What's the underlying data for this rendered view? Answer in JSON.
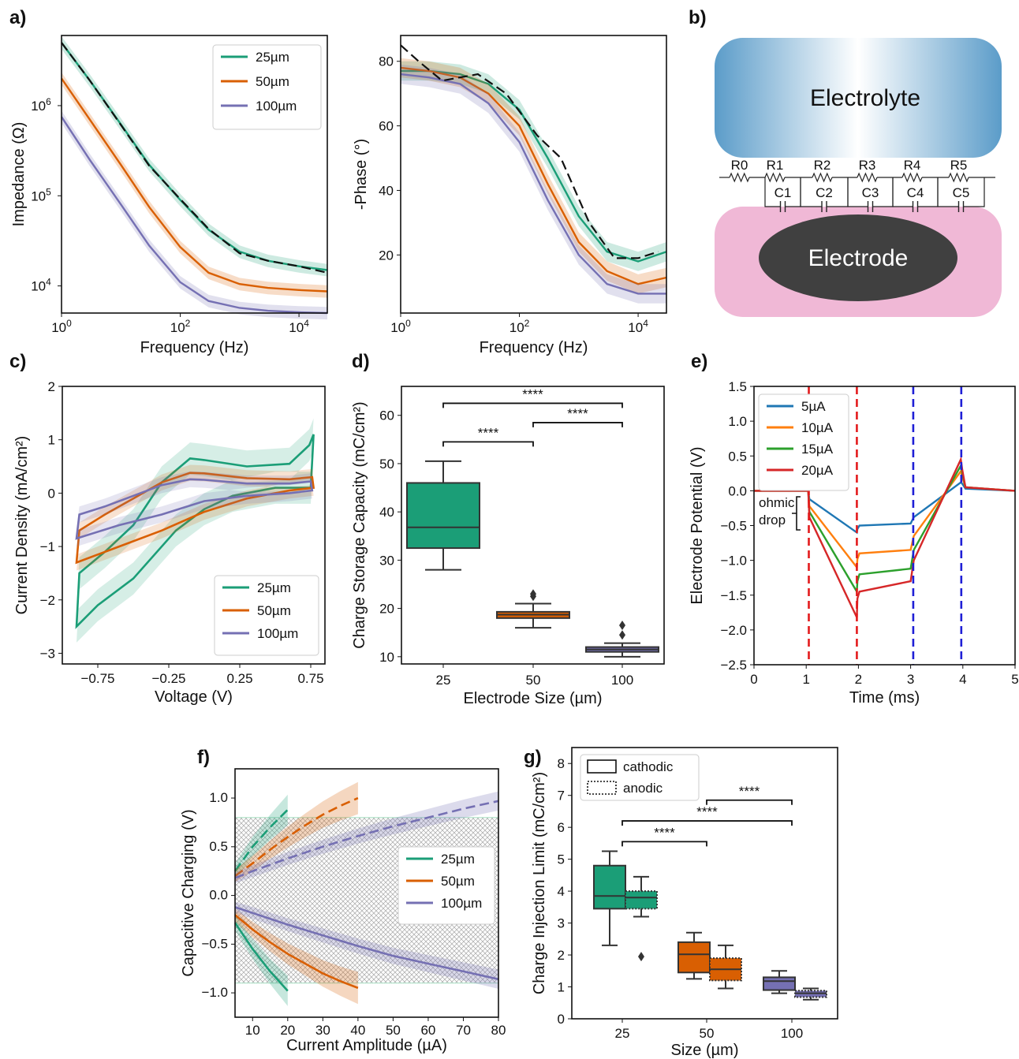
{
  "panel_labels": {
    "a": "a)",
    "b": "b)",
    "c": "c)",
    "d": "d)",
    "e": "e)",
    "f": "f)",
    "g": "g)"
  },
  "colors": {
    "25um": "#1b9e77",
    "50um": "#d95f02",
    "100um": "#7570b3",
    "fit": "#111111",
    "5uA": "#1f77b4",
    "10uA": "#ff7f0e",
    "15uA": "#2ca02c",
    "20uA": "#d62728",
    "red_dash": "#e31a1c",
    "blue_dash": "#1f1fd6",
    "electrode_bg": "#f0b8d6",
    "electrode": "#404040",
    "electrolyte": "#5b9cc9"
  },
  "diagram": {
    "electrolyte_label": "Electrolyte",
    "electrode_label": "Electrode",
    "resistors": [
      "R0",
      "R1",
      "R2",
      "R3",
      "R4",
      "R5"
    ],
    "capacitors": [
      "C1",
      "C2",
      "C3",
      "C4",
      "C5"
    ]
  },
  "chart_data": [
    {
      "id": "a_impedance",
      "type": "line",
      "xlabel": "Frequency (Hz)",
      "ylabel": "Impedance (Ω)",
      "xscale": "log",
      "yscale": "log",
      "xlim": [
        1,
        30000
      ],
      "ylim": [
        5000,
        6000000
      ],
      "x_ticks": [
        "10^0",
        "10^2",
        "10^4"
      ],
      "y_ticks": [
        "10^4",
        "10^5",
        "10^6"
      ],
      "legend": "top-right",
      "series": [
        {
          "name": "25µm",
          "x": [
            1,
            3,
            10,
            30,
            100,
            300,
            1000,
            3000,
            10000,
            30000
          ],
          "y": [
            5000000,
            1900000,
            620000,
            220000,
            90000,
            42000,
            24000,
            19000,
            16500,
            15000
          ]
        },
        {
          "name": "50µm",
          "x": [
            1,
            3,
            10,
            30,
            100,
            300,
            1000,
            3000,
            10000,
            30000
          ],
          "y": [
            2000000,
            700000,
            220000,
            75000,
            27000,
            14000,
            10500,
            9500,
            9000,
            8700
          ]
        },
        {
          "name": "100µm",
          "x": [
            1,
            3,
            10,
            30,
            100,
            300,
            1000,
            3000,
            10000,
            30000
          ],
          "y": [
            750000,
            250000,
            80000,
            28000,
            11000,
            6800,
            5700,
            5300,
            5100,
            5000
          ]
        },
        {
          "name": "",
          "style": "fit",
          "x": [
            1,
            3,
            10,
            30,
            100,
            300,
            1000,
            3000,
            10000,
            30000
          ],
          "y": [
            5000000,
            1900000,
            610000,
            215000,
            92000,
            43000,
            23000,
            19000,
            16500,
            14000
          ]
        }
      ]
    },
    {
      "id": "a_phase",
      "type": "line",
      "xlabel": "Frequency (Hz)",
      "ylabel": "-Phase (°)",
      "xscale": "log",
      "xlim": [
        1,
        30000
      ],
      "ylim": [
        2,
        88
      ],
      "x_ticks": [
        "10^0",
        "10^2",
        "10^4"
      ],
      "y_ticks": [
        20,
        40,
        60,
        80
      ],
      "series": [
        {
          "name": "25µm",
          "x": [
            1,
            3,
            10,
            30,
            100,
            300,
            1000,
            3000,
            10000,
            30000
          ],
          "y": [
            77,
            77,
            76,
            73,
            65,
            50,
            32,
            21,
            18,
            21
          ]
        },
        {
          "name": "50µm",
          "x": [
            1,
            3,
            10,
            30,
            100,
            300,
            1000,
            3000,
            10000,
            30000
          ],
          "y": [
            78,
            77,
            75,
            70,
            60,
            42,
            24,
            15,
            11,
            13
          ]
        },
        {
          "name": "100µm",
          "x": [
            1,
            3,
            10,
            30,
            100,
            300,
            1000,
            3000,
            10000,
            30000
          ],
          "y": [
            76,
            75,
            73,
            67,
            55,
            37,
            20,
            11,
            8,
            8
          ]
        },
        {
          "name": "",
          "style": "fit",
          "x": [
            1,
            2,
            5,
            20,
            60,
            200,
            500,
            1500,
            4000,
            10000,
            22000
          ],
          "y": [
            85,
            80,
            74,
            76,
            70,
            57,
            50,
            30,
            19,
            19,
            21
          ]
        }
      ]
    },
    {
      "id": "c_cv",
      "type": "line",
      "xlabel": "Voltage (V)",
      "ylabel": "Current Density (mA/cm²)",
      "xlim": [
        -1.0,
        0.85
      ],
      "ylim": [
        -3.2,
        2.0
      ],
      "x_ticks": [
        -0.75,
        -0.25,
        0.25,
        0.75
      ],
      "x_tick_labels": [
        "−0.75",
        "−0.25",
        "0.25",
        "0.75"
      ],
      "y_ticks": [
        -3,
        -2,
        -1,
        0,
        1,
        2
      ],
      "y_tick_labels": [
        "−3",
        "−2",
        "−1",
        "0",
        "1",
        "2"
      ],
      "legend": "bottom-right",
      "series": [
        {
          "name": "25µm",
          "x": [
            -0.9,
            -0.88,
            -0.7,
            -0.5,
            -0.3,
            -0.1,
            0.0,
            0.3,
            0.6,
            0.74,
            0.77,
            0.75,
            0.5,
            0.2,
            0.0,
            -0.2,
            -0.5,
            -0.75,
            -0.9,
            -0.9
          ],
          "y": [
            -2.5,
            -1.5,
            -1.1,
            -0.6,
            0.2,
            0.65,
            0.62,
            0.5,
            0.55,
            0.9,
            1.1,
            0.1,
            0.1,
            -0.05,
            -0.3,
            -0.7,
            -1.6,
            -2.1,
            -2.5,
            -2.5
          ]
        },
        {
          "name": "50µm",
          "x": [
            -0.9,
            -0.88,
            -0.7,
            -0.5,
            -0.3,
            -0.1,
            0.0,
            0.3,
            0.6,
            0.76,
            0.77,
            0.6,
            0.3,
            0.0,
            -0.3,
            -0.6,
            -0.9,
            -0.9
          ],
          "y": [
            -1.3,
            -0.7,
            -0.4,
            -0.1,
            0.2,
            0.38,
            0.37,
            0.28,
            0.26,
            0.3,
            0.1,
            0.05,
            -0.1,
            -0.35,
            -0.7,
            -1.0,
            -1.3,
            -1.3
          ]
        },
        {
          "name": "100µm",
          "x": [
            -0.9,
            -0.88,
            -0.7,
            -0.5,
            -0.3,
            -0.1,
            0.0,
            0.3,
            0.6,
            0.75,
            0.76,
            0.6,
            0.3,
            0.0,
            -0.3,
            -0.6,
            -0.9,
            -0.9
          ],
          "y": [
            -0.85,
            -0.4,
            -0.25,
            -0.05,
            0.15,
            0.26,
            0.25,
            0.18,
            0.18,
            0.22,
            0.05,
            0.0,
            -0.05,
            -0.15,
            -0.4,
            -0.6,
            -0.85,
            -0.85
          ]
        }
      ]
    },
    {
      "id": "d_css",
      "type": "box",
      "xlabel": "Electrode Size (µm)",
      "ylabel": "Charge Storage Capacity (mC/cm²)",
      "ylim": [
        8.5,
        66
      ],
      "y_ticks": [
        10,
        20,
        30,
        40,
        50,
        60
      ],
      "categories": [
        "25",
        "50",
        "100"
      ],
      "boxes": [
        {
          "whisker_low": 28,
          "q1": 32.5,
          "median": 36.8,
          "q3": 46,
          "whisker_high": 50.5,
          "outliers": []
        },
        {
          "whisker_low": 16,
          "q1": 18,
          "median": 18.7,
          "q3": 19.3,
          "whisker_high": 21,
          "outliers": [
            22.5,
            23
          ]
        },
        {
          "whisker_low": 10,
          "q1": 11,
          "median": 11.5,
          "q3": 12,
          "whisker_high": 12.8,
          "outliers": [
            14.5,
            16.5
          ]
        }
      ],
      "significance": [
        {
          "from": "25",
          "to": "100",
          "label": "****",
          "y": 62.5
        },
        {
          "from": "50",
          "to": "100",
          "label": "****",
          "y": 58.5
        },
        {
          "from": "25",
          "to": "50",
          "label": "****",
          "y": 54.5
        }
      ]
    },
    {
      "id": "e_vt",
      "type": "line",
      "xlabel": "Time (ms)",
      "ylabel": "Electrode Potential (V)",
      "xlim": [
        0,
        5
      ],
      "ylim": [
        -2.5,
        1.5
      ],
      "x_ticks": [
        0,
        1,
        2,
        3,
        4,
        5
      ],
      "y_ticks": [
        -2.5,
        -2.0,
        -1.5,
        -1.0,
        -0.5,
        0.0,
        0.5,
        1.0,
        1.5
      ],
      "y_tick_labels": [
        "−2.5",
        "−2.0",
        "−1.5",
        "−1.0",
        "−0.5",
        "0.0",
        "0.5",
        "1.0",
        "1.5"
      ],
      "legend": "top-left",
      "annotation": [
        "ohmic",
        "drop"
      ],
      "vlines": [
        {
          "x": 1.05,
          "color": "red"
        },
        {
          "x": 1.97,
          "color": "red"
        },
        {
          "x": 3.05,
          "color": "blue"
        },
        {
          "x": 3.97,
          "color": "blue"
        }
      ],
      "series": [
        {
          "name": "5µA",
          "x": [
            0,
            1.04,
            1.06,
            1.97,
            1.98,
            2.02,
            3.0,
            3.06,
            3.96,
            3.99,
            4.05,
            5
          ],
          "y": [
            0,
            0,
            -0.12,
            -0.6,
            -0.55,
            -0.5,
            -0.47,
            -0.38,
            0.12,
            0.1,
            0.03,
            0
          ]
        },
        {
          "name": "10µA",
          "x": [
            0,
            1.04,
            1.06,
            1.97,
            1.98,
            2.02,
            3.0,
            3.06,
            3.96,
            3.99,
            4.05,
            5
          ],
          "y": [
            0,
            0,
            -0.22,
            -1.1,
            -0.98,
            -0.9,
            -0.85,
            -0.65,
            0.28,
            0.2,
            0.05,
            0
          ]
        },
        {
          "name": "15µA",
          "x": [
            0,
            1.04,
            1.06,
            1.97,
            1.98,
            2.02,
            3.0,
            3.06,
            3.96,
            3.99,
            4.05,
            5
          ],
          "y": [
            0,
            0,
            -0.3,
            -1.45,
            -1.3,
            -1.2,
            -1.12,
            -0.85,
            0.36,
            0.25,
            0.05,
            0
          ]
        },
        {
          "name": "20µA",
          "x": [
            0,
            1.04,
            1.06,
            1.97,
            1.98,
            2.02,
            3.0,
            3.06,
            3.96,
            3.99,
            4.05,
            5
          ],
          "y": [
            0,
            0,
            -0.38,
            -1.82,
            -1.55,
            -1.45,
            -1.3,
            -1.0,
            0.45,
            0.3,
            0.05,
            0
          ]
        }
      ]
    },
    {
      "id": "f_capacitive",
      "type": "line",
      "xlabel": "Current Amplitude (µA)",
      "ylabel": "Capacitive Charging (V)",
      "xlim": [
        5,
        80
      ],
      "ylim": [
        -1.25,
        1.3
      ],
      "x_ticks": [
        10,
        20,
        30,
        40,
        50,
        60,
        70,
        80
      ],
      "y_ticks": [
        -1.0,
        -0.5,
        0.0,
        0.5,
        1.0
      ],
      "y_tick_labels": [
        "−1.0",
        "−0.5",
        "0.0",
        "0.5",
        "1.0"
      ],
      "window": [
        -0.9,
        0.8
      ],
      "legend": "right",
      "series": [
        {
          "name": "25µm",
          "style": "anodic",
          "x": [
            5,
            10,
            15,
            20
          ],
          "y": [
            0.25,
            0.5,
            0.7,
            0.88
          ]
        },
        {
          "name": "25µm",
          "style": "cathodic",
          "x": [
            5,
            10,
            15,
            20
          ],
          "y": [
            -0.28,
            -0.55,
            -0.78,
            -0.98
          ]
        },
        {
          "name": "50µm",
          "style": "anodic",
          "x": [
            5,
            10,
            15,
            20,
            25,
            30,
            35,
            40
          ],
          "y": [
            0.2,
            0.33,
            0.47,
            0.6,
            0.72,
            0.83,
            0.92,
            1.0
          ]
        },
        {
          "name": "50µm",
          "style": "cathodic",
          "x": [
            5,
            10,
            15,
            20,
            25,
            30,
            35,
            40
          ],
          "y": [
            -0.2,
            -0.35,
            -0.48,
            -0.6,
            -0.7,
            -0.8,
            -0.88,
            -0.95
          ]
        },
        {
          "name": "100µm",
          "style": "anodic",
          "x": [
            5,
            10,
            20,
            30,
            40,
            50,
            60,
            70,
            80
          ],
          "y": [
            0.18,
            0.25,
            0.38,
            0.5,
            0.61,
            0.71,
            0.8,
            0.89,
            0.97
          ]
        },
        {
          "name": "100µm",
          "style": "cathodic",
          "x": [
            5,
            10,
            20,
            30,
            40,
            50,
            60,
            70,
            80
          ],
          "y": [
            -0.12,
            -0.18,
            -0.3,
            -0.41,
            -0.52,
            -0.62,
            -0.7,
            -0.78,
            -0.86
          ]
        }
      ]
    },
    {
      "id": "g_cil",
      "type": "box",
      "xlabel": "Size (µm)",
      "ylabel": "Charge Injection Limit (mC/cm²)",
      "ylim": [
        0,
        8.5
      ],
      "y_ticks": [
        0,
        1,
        2,
        3,
        4,
        5,
        6,
        7,
        8
      ],
      "categories": [
        "25",
        "50",
        "100"
      ],
      "legend": [
        "cathodic",
        "anodic"
      ],
      "boxes": [
        {
          "kind": "cathodic",
          "whisker_low": 2.3,
          "q1": 3.45,
          "median": 3.85,
          "q3": 4.8,
          "whisker_high": 5.25,
          "outliers": []
        },
        {
          "kind": "anodic",
          "whisker_low": 3.2,
          "q1": 3.45,
          "median": 3.8,
          "q3": 4.0,
          "whisker_high": 4.45,
          "outliers": [
            1.95
          ]
        },
        {
          "kind": "cathodic",
          "whisker_low": 1.25,
          "q1": 1.45,
          "median": 2.02,
          "q3": 2.4,
          "whisker_high": 2.7,
          "outliers": []
        },
        {
          "kind": "anodic",
          "whisker_low": 0.95,
          "q1": 1.2,
          "median": 1.55,
          "q3": 1.9,
          "whisker_high": 2.3,
          "outliers": []
        },
        {
          "kind": "cathodic",
          "whisker_low": 0.8,
          "q1": 0.9,
          "median": 1.18,
          "q3": 1.3,
          "whisker_high": 1.5,
          "outliers": []
        },
        {
          "kind": "anodic",
          "whisker_low": 0.6,
          "q1": 0.68,
          "median": 0.8,
          "q3": 0.88,
          "whisker_high": 0.95,
          "outliers": []
        }
      ],
      "significance": [
        {
          "from": "50",
          "to": "100",
          "label": "****",
          "y": 6.85
        },
        {
          "from": "25",
          "to": "100",
          "label": "****",
          "y": 6.2
        },
        {
          "from": "25",
          "to": "50",
          "label": "****",
          "y": 5.55
        }
      ]
    }
  ]
}
